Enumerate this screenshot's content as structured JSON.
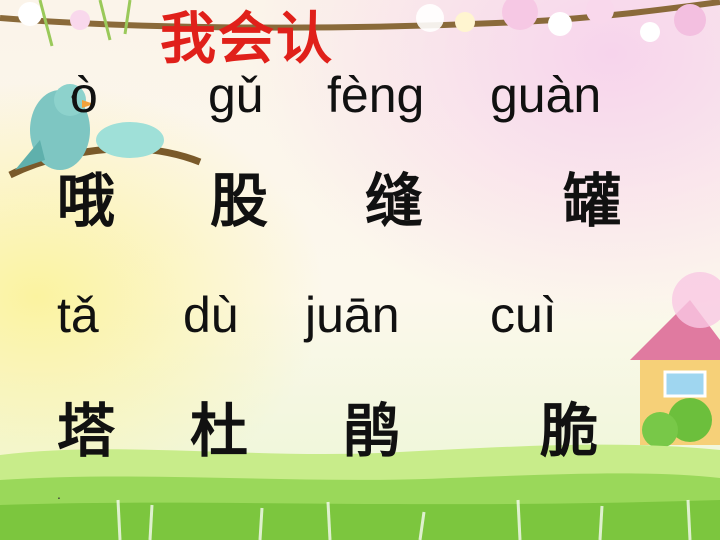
{
  "title": "我会认",
  "rows": [
    {
      "pinyin": [
        "ò",
        "gǔ",
        "fèng",
        "guàn"
      ],
      "hanzi": [
        "哦",
        "股",
        "缝",
        "罐"
      ]
    },
    {
      "pinyin": [
        "tǎ",
        "dù",
        "juān",
        "cuì"
      ],
      "hanzi": [
        "塔",
        "杜",
        "鹃",
        "脆"
      ]
    }
  ],
  "footnote": ".",
  "decorations": [
    "bird-illustration",
    "branch-with-flowers",
    "house-illustration",
    "grass-border"
  ],
  "colors": {
    "title": "#e0201a",
    "text": "#111111",
    "background_top": "#fdf7e8",
    "grass": "#8fd24a"
  }
}
